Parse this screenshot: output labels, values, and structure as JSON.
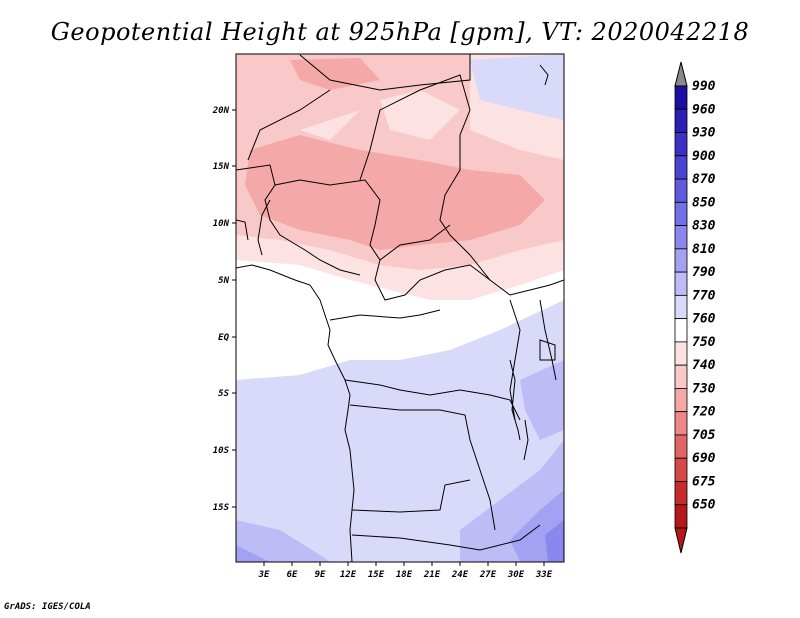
{
  "title": "Geopotential Height at 925hPa [gpm], VT: 2020042218",
  "credit": "GrADS: IGES/COLA",
  "map": {
    "lat_labels": [
      "20N",
      "15N",
      "10N",
      "5N",
      "EQ",
      "5S",
      "10S",
      "15S"
    ],
    "lon_labels": [
      "3E",
      "6E",
      "9E",
      "12E",
      "15E",
      "18E",
      "21E",
      "24E",
      "27E",
      "30E",
      "33E"
    ],
    "lat_range": [
      -20,
      25
    ],
    "lon_range": [
      0,
      35
    ]
  },
  "colorbar": {
    "levels": [
      "990",
      "960",
      "930",
      "900",
      "870",
      "850",
      "830",
      "810",
      "790",
      "770",
      "760",
      "750",
      "740",
      "730",
      "720",
      "705",
      "690",
      "675",
      "650"
    ],
    "colors": [
      "#1a0fa0",
      "#2a20b4",
      "#3b32c4",
      "#4b44d2",
      "#5f5ae0",
      "#7470e8",
      "#8a88ee",
      "#a3a2f2",
      "#bdbcf6",
      "#d9d9fa",
      "#ffffff",
      "#fce2e2",
      "#f9c8c8",
      "#f4a8a8",
      "#ee8888",
      "#e26666",
      "#d84848",
      "#c62c2c",
      "#b41818"
    ]
  }
}
